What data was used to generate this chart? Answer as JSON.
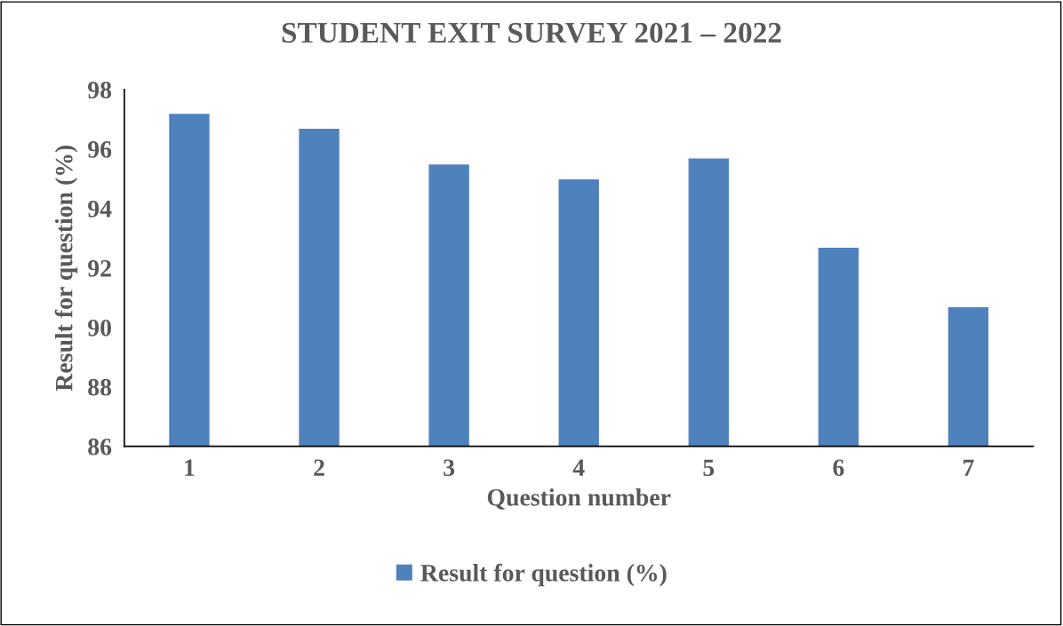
{
  "chart_data": {
    "type": "bar",
    "title": "STUDENT EXIT SURVEY 2021 – 2022",
    "xlabel": "Question number",
    "ylabel": "Result for question (%)",
    "categories": [
      "1",
      "2",
      "3",
      "4",
      "5",
      "6",
      "7"
    ],
    "series": [
      {
        "name": "Result for question (%)",
        "color": "#4f81bd",
        "values": [
          97.2,
          96.7,
          95.5,
          95.0,
          95.7,
          92.7,
          90.7
        ]
      }
    ],
    "ylim": [
      86,
      98
    ],
    "yticks": [
      86,
      88,
      90,
      92,
      94,
      96,
      98
    ],
    "grid": false,
    "legend": "bottom"
  }
}
